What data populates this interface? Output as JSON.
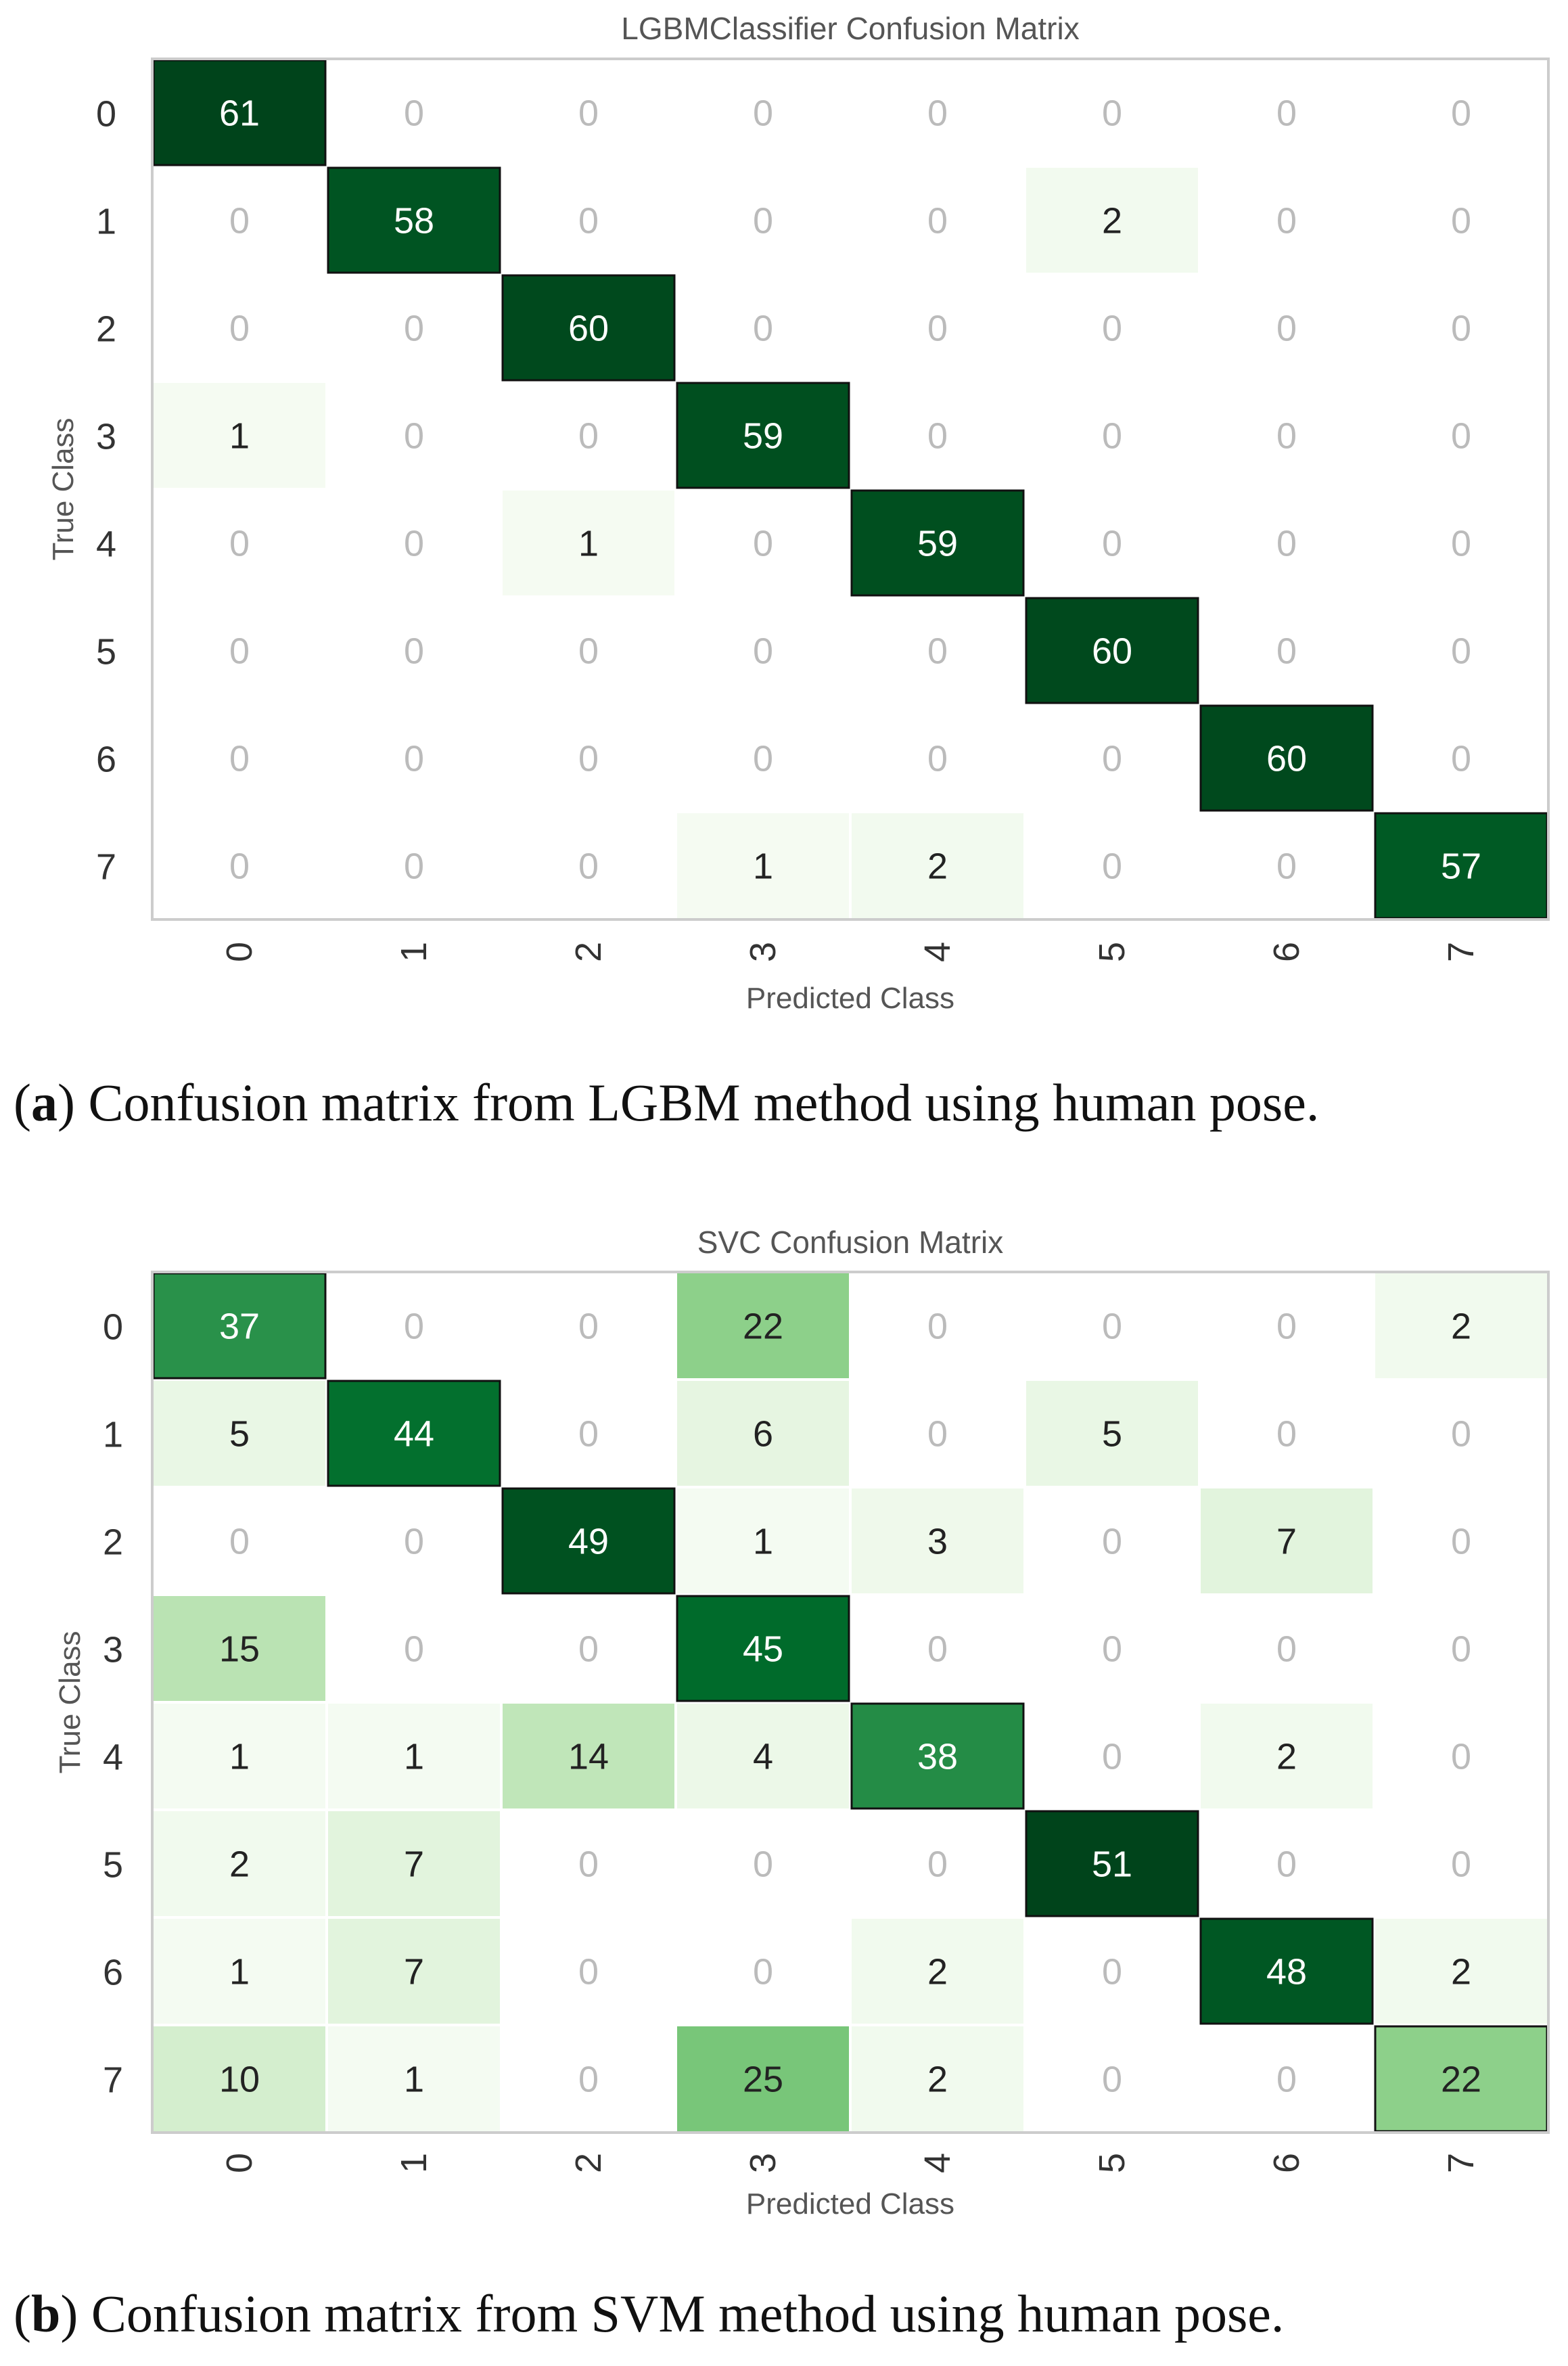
{
  "captions": [
    {
      "letter": "a",
      "text": "Confusion matrix from LGBM method using human pose."
    },
    {
      "letter": "b",
      "text": "Confusion matrix from SVM method using human pose."
    }
  ],
  "colors": {
    "zero_text": "#bbbbbb",
    "dark_text": "#ffffff",
    "light_text": "#222222",
    "min_cell": "#f7fcf5",
    "max_cell": "#00441b"
  },
  "chart_data": [
    {
      "type": "heatmap",
      "title": "LGBMClassifier Confusion Matrix",
      "xlabel": "Predicted Class",
      "ylabel": "True Class",
      "categories": [
        "0",
        "1",
        "2",
        "3",
        "4",
        "5",
        "6",
        "7"
      ],
      "rows": [
        "0",
        "1",
        "2",
        "3",
        "4",
        "5",
        "6",
        "7"
      ],
      "values": [
        [
          61,
          0,
          0,
          0,
          0,
          0,
          0,
          0
        ],
        [
          0,
          58,
          0,
          0,
          0,
          2,
          0,
          0
        ],
        [
          0,
          0,
          60,
          0,
          0,
          0,
          0,
          0
        ],
        [
          1,
          0,
          0,
          59,
          0,
          0,
          0,
          0
        ],
        [
          0,
          0,
          1,
          0,
          59,
          0,
          0,
          0
        ],
        [
          0,
          0,
          0,
          0,
          0,
          60,
          0,
          0
        ],
        [
          0,
          0,
          0,
          0,
          0,
          0,
          60,
          0
        ],
        [
          0,
          0,
          0,
          1,
          2,
          0,
          0,
          57
        ]
      ],
      "color_range": [
        0,
        61
      ]
    },
    {
      "type": "heatmap",
      "title": "SVC Confusion Matrix",
      "xlabel": "Predicted Class",
      "ylabel": "True Class",
      "categories": [
        "0",
        "1",
        "2",
        "3",
        "4",
        "5",
        "6",
        "7"
      ],
      "rows": [
        "0",
        "1",
        "2",
        "3",
        "4",
        "5",
        "6",
        "7"
      ],
      "values": [
        [
          37,
          0,
          0,
          22,
          0,
          0,
          0,
          2
        ],
        [
          5,
          44,
          0,
          6,
          0,
          5,
          0,
          0
        ],
        [
          0,
          0,
          49,
          1,
          3,
          0,
          7,
          0
        ],
        [
          15,
          0,
          0,
          45,
          0,
          0,
          0,
          0
        ],
        [
          1,
          1,
          14,
          4,
          38,
          0,
          2,
          0
        ],
        [
          2,
          7,
          0,
          0,
          0,
          51,
          0,
          0
        ],
        [
          1,
          7,
          0,
          0,
          2,
          0,
          48,
          2
        ],
        [
          10,
          1,
          0,
          25,
          2,
          0,
          0,
          22
        ]
      ],
      "color_range": [
        0,
        51
      ]
    }
  ]
}
